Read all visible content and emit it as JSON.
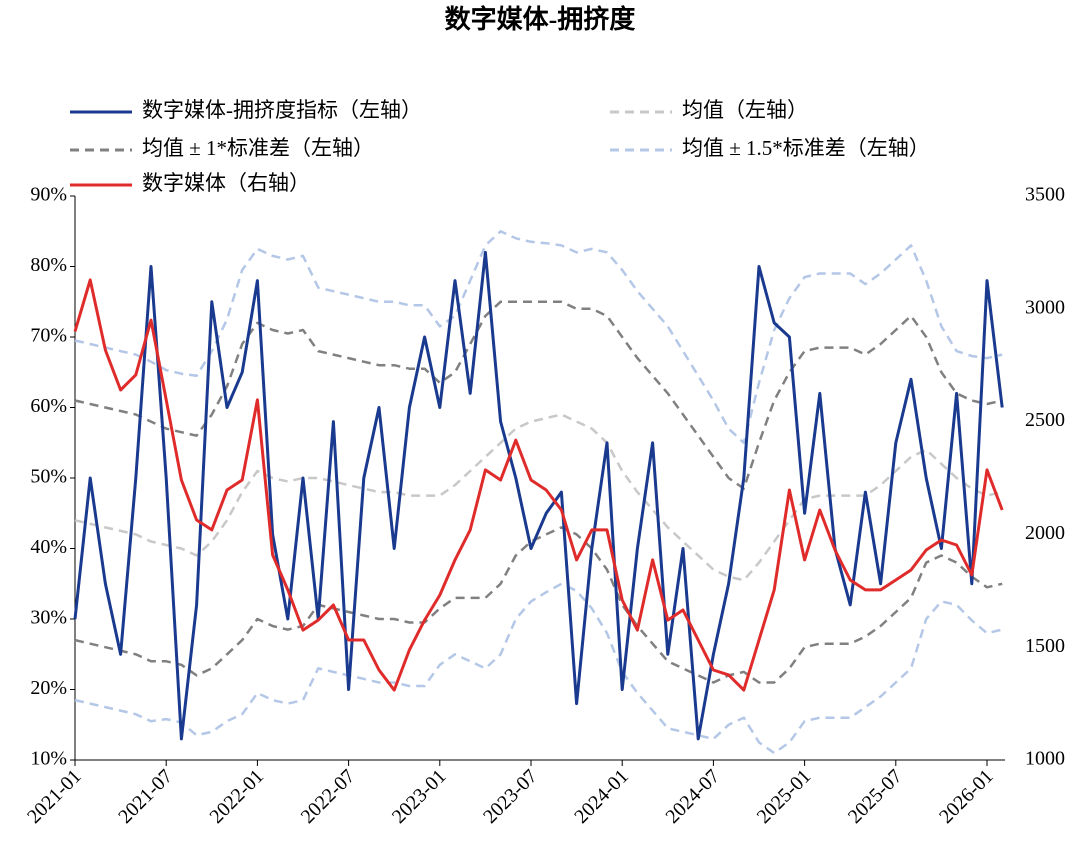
{
  "chart_data": {
    "type": "line",
    "title": "数字媒体-拥挤度",
    "categories": [
      "2021-01",
      null,
      null,
      null,
      null,
      null,
      "2021-07",
      null,
      null,
      null,
      null,
      null,
      "2022-01",
      null,
      null,
      null,
      null,
      null,
      "2022-07",
      null,
      null,
      null,
      null,
      null,
      "2023-01",
      null,
      null,
      null,
      null,
      null,
      "2023-07",
      null,
      null,
      null,
      null,
      null,
      "2024-01",
      null,
      null,
      null,
      null,
      null,
      "2024-07",
      null,
      null,
      null,
      null,
      null,
      "2025-01",
      null,
      null,
      null,
      null,
      null,
      "2025-07",
      null,
      null,
      null,
      null,
      null,
      "2026-01",
      null
    ],
    "ylim": [
      10,
      90
    ],
    "yticks": [
      {
        "value": 10,
        "label": "10%"
      },
      {
        "value": 20,
        "label": "20%"
      },
      {
        "value": 30,
        "label": "30%"
      },
      {
        "value": 40,
        "label": "40%"
      },
      {
        "value": 50,
        "label": "50%"
      },
      {
        "value": 60,
        "label": "60%"
      },
      {
        "value": 70,
        "label": "70%"
      },
      {
        "value": 80,
        "label": "80%"
      },
      {
        "value": 90,
        "label": "90%"
      }
    ],
    "y2lim": [
      1000,
      3500
    ],
    "y2ticks": [
      1000,
      1500,
      2000,
      2500,
      3000,
      3500
    ],
    "series": [
      {
        "name": "数字媒体-拥挤度指标（左轴）",
        "color": "#1a3a8f",
        "values": [
          30,
          50,
          35,
          25,
          50,
          80,
          50,
          13,
          32,
          75,
          60,
          65,
          78,
          42,
          30,
          50,
          30,
          58,
          20,
          50,
          60,
          40,
          60,
          70,
          60,
          78,
          62,
          82,
          58,
          50,
          40,
          45,
          48,
          18,
          40,
          55,
          20,
          40,
          55,
          25,
          40,
          13,
          25,
          35,
          50,
          80,
          72,
          70,
          45,
          62,
          40,
          32,
          48,
          35,
          55,
          64,
          50,
          40,
          62,
          35,
          78,
          60
        ]
      },
      {
        "name": "均值（左轴）",
        "color": "#c8c8c8",
        "values": [
          44,
          43.5,
          43,
          42.5,
          42,
          41,
          40.5,
          40,
          39,
          41,
          44,
          48,
          51,
          50,
          49.5,
          50,
          50,
          49.5,
          49,
          48.5,
          48,
          48,
          47.5,
          47.5,
          47.5,
          49,
          51,
          53,
          55,
          57,
          58,
          58.5,
          59,
          58,
          57,
          55,
          51,
          48,
          45.5,
          43,
          41,
          39,
          37,
          36,
          35.5,
          38,
          41,
          44,
          47,
          47.5,
          47.5,
          47.5,
          47.5,
          49,
          51,
          53,
          54,
          52,
          50,
          48.5,
          47.5,
          48
        ]
      },
      {
        "name": "均值 ± 1*标准差（左轴）",
        "color": "#808080",
        "upper": [
          61,
          60.5,
          60,
          59.5,
          59,
          58,
          57,
          56.5,
          56,
          59,
          63,
          69,
          72,
          71,
          70.5,
          71,
          68,
          67.5,
          67,
          66.5,
          66,
          66,
          65.5,
          65.5,
          63.5,
          65,
          69,
          73,
          75,
          75,
          75,
          75,
          75,
          74,
          74,
          73,
          70,
          67,
          64.5,
          62,
          59,
          56,
          53,
          50,
          48.5,
          55,
          61,
          65,
          68,
          68.5,
          68.5,
          68.5,
          67.5,
          69,
          71,
          73,
          70,
          65,
          62,
          61,
          60.5,
          61
        ],
        "lower": [
          27,
          26.5,
          26,
          25.5,
          25,
          24,
          24,
          23.5,
          22,
          23,
          25,
          27,
          30,
          29,
          28.5,
          29,
          32,
          31.5,
          31,
          30.5,
          30,
          30,
          29.5,
          29.5,
          31.5,
          33,
          33,
          33,
          35,
          39,
          41,
          42,
          43,
          42,
          40,
          37,
          32,
          29,
          26.5,
          24,
          23,
          22,
          21,
          22,
          22.5,
          21,
          21,
          23,
          26,
          26.5,
          26.5,
          26.5,
          27.5,
          29,
          31,
          33,
          38,
          39,
          38,
          36,
          34.5,
          35
        ]
      },
      {
        "name": "均值 ± 1.5*标准差（左轴）",
        "color": "#b4c7e7",
        "upper": [
          69.5,
          69,
          68.5,
          68,
          67.5,
          66.5,
          65.3,
          64.8,
          64.5,
          68,
          72.5,
          79.5,
          82.5,
          81.5,
          81,
          81.5,
          77,
          76.5,
          76,
          75.5,
          75,
          75,
          74.5,
          74.5,
          71.5,
          73,
          78,
          83,
          85,
          84,
          83.5,
          83.3,
          83,
          82,
          82.5,
          82,
          79.5,
          76.5,
          74,
          71.5,
          68,
          64.5,
          61,
          57,
          55,
          63.5,
          71,
          75.5,
          78.5,
          79,
          79,
          79,
          77.5,
          79,
          81,
          83,
          78,
          71.5,
          68,
          67.3,
          67,
          67.5
        ],
        "lower": [
          18.5,
          18,
          17.5,
          17,
          16.5,
          15.5,
          15.8,
          15.3,
          13.5,
          14,
          15.5,
          16.5,
          19.5,
          18.5,
          18,
          18.5,
          23,
          22.5,
          22,
          21.5,
          21,
          21,
          20.5,
          20.5,
          23.5,
          25,
          24,
          23,
          25,
          30,
          32.5,
          33.8,
          35,
          34,
          31.5,
          28,
          22.5,
          19.5,
          17,
          14.5,
          14,
          13.5,
          13,
          15,
          16,
          12.5,
          11,
          12.5,
          15.5,
          16,
          16,
          16,
          17.5,
          19,
          21,
          23,
          30,
          32.5,
          32,
          29.8,
          28,
          28.5
        ]
      },
      {
        "name": "数字媒体（右轴）",
        "color": "#e02b2b",
        "axis": "y2",
        "values": [
          2900,
          3128,
          2817,
          2640,
          2707,
          2950,
          2596,
          2241,
          2064,
          2020,
          2197,
          2241,
          2596,
          1909,
          1754,
          1576,
          1620,
          1687,
          1532,
          1532,
          1399,
          1310,
          1488,
          1620,
          1731,
          1887,
          2020,
          2286,
          2241,
          2418,
          2241,
          2197,
          2108,
          1887,
          2020,
          2020,
          1709,
          1576,
          1887,
          1620,
          1665,
          1532,
          1399,
          1377,
          1310,
          1532,
          1754,
          2197,
          1887,
          2108,
          1931,
          1798,
          1754,
          1754,
          1798,
          1842,
          1931,
          1975,
          1953,
          1820,
          2286,
          2108
        ]
      }
    ]
  }
}
